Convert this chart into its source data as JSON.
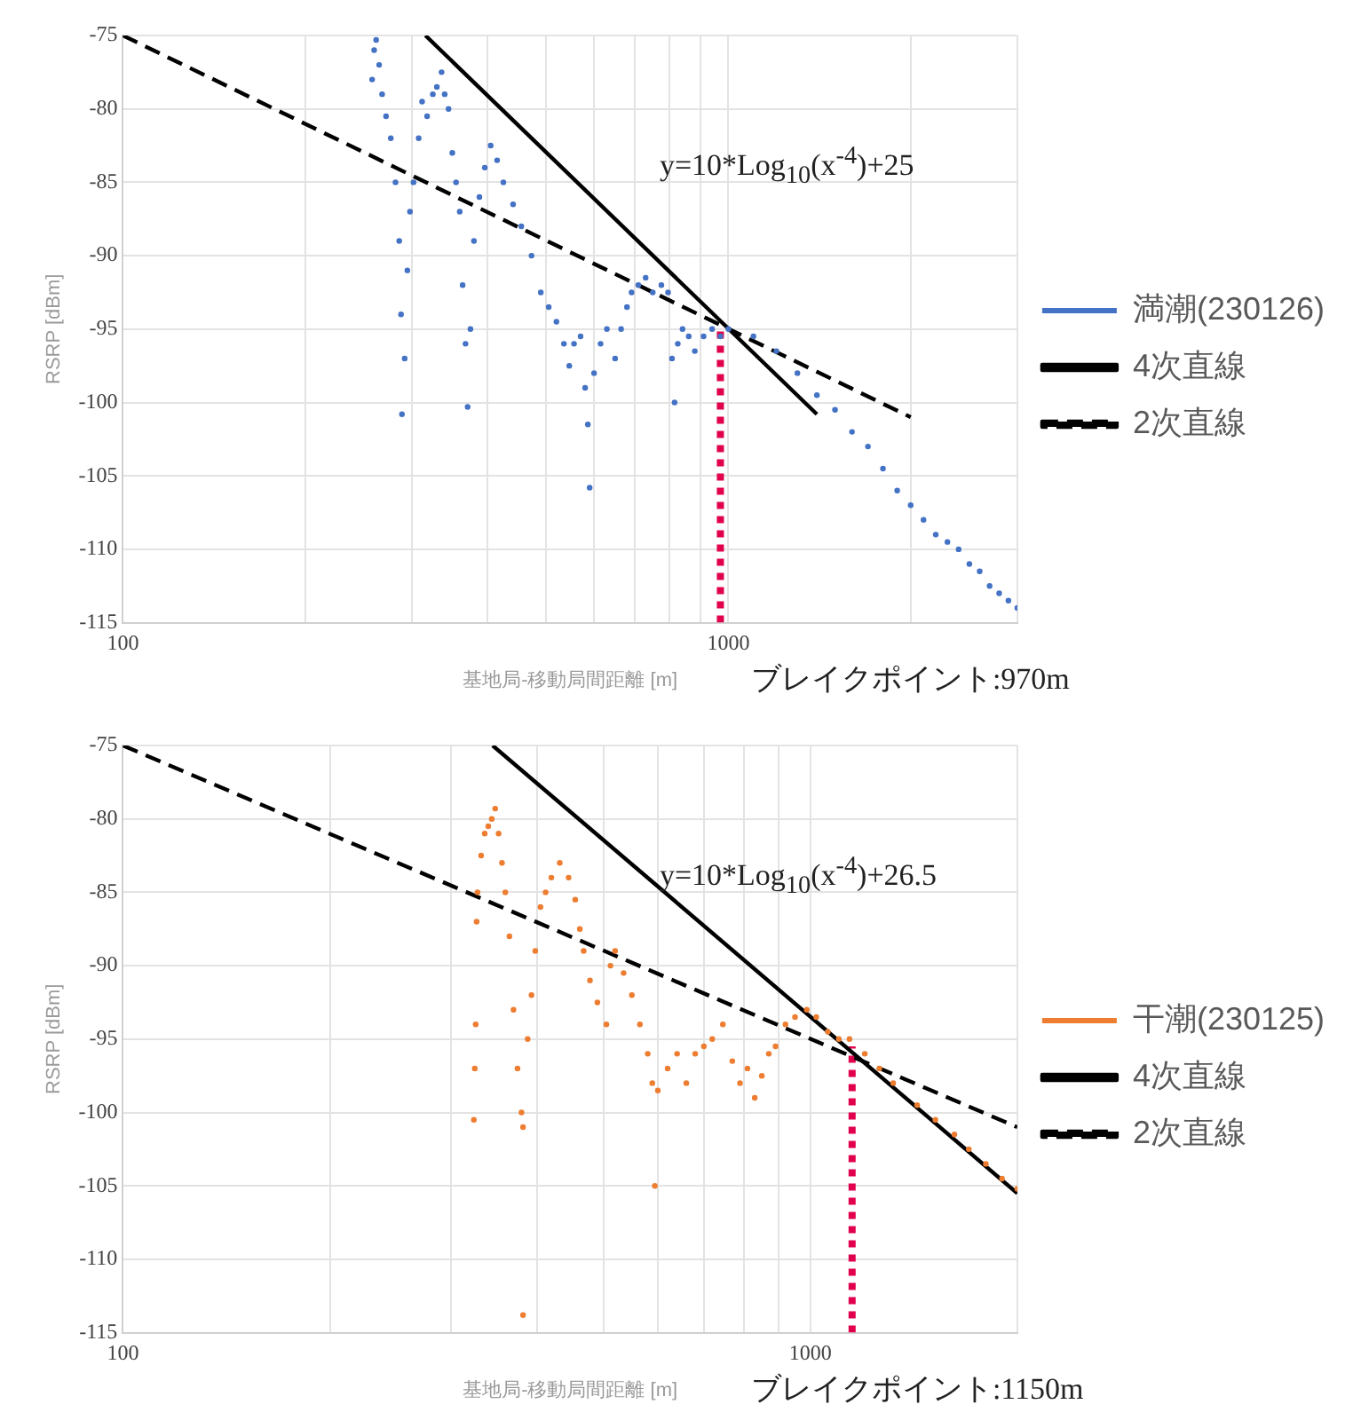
{
  "chart_data": [
    {
      "type": "scatter",
      "xlabel": "基地局-移動局間距離 [m]",
      "ylabel": "RSRP [dBm]",
      "log": "x",
      "grid": true,
      "legend": "right",
      "xlim": [
        100,
        3000
      ],
      "xticks": [
        {
          "value": 100,
          "label": "100"
        },
        {
          "value": 200,
          "label": null
        },
        {
          "value": 300,
          "label": null
        },
        {
          "value": 400,
          "label": null
        },
        {
          "value": 500,
          "label": null
        },
        {
          "value": 600,
          "label": null
        },
        {
          "value": 700,
          "label": null
        },
        {
          "value": 800,
          "label": null
        },
        {
          "value": 900,
          "label": null
        },
        {
          "value": 1000,
          "label": "1000"
        },
        {
          "value": 2000,
          "label": null
        },
        {
          "value": 3000,
          "label": null
        }
      ],
      "ylim": [
        -115,
        -75
      ],
      "yticks": [
        -115,
        -110,
        -105,
        -100,
        -95,
        -90,
        -85,
        -80,
        -75
      ],
      "annotations": [
        "y=10*Log$_{10}$(x$^{-4}$)+25",
        "ブレイクポイント:970m"
      ],
      "series": [
        {
          "name": "満潮(230126)",
          "type": "scatter",
          "marker": "circle",
          "color": "#4472c4",
          "x": [
            258,
            260,
            262,
            265,
            268,
            272,
            277,
            282,
            286,
            288,
            289,
            292,
            295,
            298,
            302,
            308,
            312,
            318,
            325,
            330,
            336,
            340,
            345,
            350,
            355,
            360,
            364,
            368,
            371,
            375,
            380,
            388,
            396,
            405,
            415,
            425,
            441,
            455,
            473,
            490,
            505,
            520,
            535,
            546,
            556,
            570,
            580,
            586,
            590,
            600,
            615,
            630,
            650,
            665,
            680,
            692,
            710,
            730,
            750,
            775,
            795,
            807,
            815,
            825,
            840,
            860,
            880,
            910,
            940,
            970,
            1000,
            1100,
            1200,
            1300,
            1400,
            1500,
            1600,
            1700,
            1800,
            1900,
            2000,
            2100,
            2200,
            2300,
            2400,
            2500,
            2600,
            2700,
            2800,
            2900,
            3000
          ],
          "values": [
            -78,
            -76,
            -75.3,
            -77,
            -79,
            -80.5,
            -82,
            -85,
            -89,
            -94,
            -100.8,
            -97,
            -91,
            -87,
            -85,
            -82,
            -79.5,
            -80.5,
            -79,
            -78.5,
            -77.5,
            -79,
            -80,
            -83,
            -85,
            -87,
            -92,
            -96,
            -100.3,
            -95,
            -89,
            -86,
            -84,
            -82.5,
            -83.5,
            -85,
            -86.5,
            -88,
            -90,
            -92.5,
            -93.5,
            -94.5,
            -96,
            -97.5,
            -96,
            -95.5,
            -99,
            -101.5,
            -105.8,
            -98,
            -96,
            -95,
            -97,
            -95,
            -93.5,
            -92.5,
            -92,
            -91.5,
            -92.5,
            -92,
            -92.5,
            -97,
            -100,
            -96,
            -95,
            -95.5,
            -96.5,
            -95.5,
            -95,
            -95.5,
            -95,
            -95.5,
            -96.5,
            -98,
            -99.5,
            -100.5,
            -102,
            -103,
            -104.5,
            -106,
            -107,
            -108,
            -109,
            -109.5,
            -110,
            -111,
            -111.5,
            -112.5,
            -113,
            -113.5,
            -114
          ]
        },
        {
          "name": "4次直線",
          "type": "line",
          "color": "#000000",
          "line_style": "solid",
          "x": [
            316,
            1400
          ],
          "values": [
            -75,
            -100.8
          ]
        },
        {
          "name": "2次直線",
          "type": "line",
          "color": "#000000",
          "line_style": "dashed",
          "x": [
            100,
            2000
          ],
          "values": [
            -75,
            -101
          ]
        },
        {
          "type": "line",
          "color": "#e0004d",
          "line_style": "dotted",
          "x": [
            970,
            970
          ],
          "values": [
            -115,
            -95
          ]
        }
      ]
    },
    {
      "type": "scatter",
      "xlabel": "基地局-移動局間距離 [m]",
      "ylabel": "RSRP [dBm]",
      "log": "x",
      "grid": true,
      "legend": "right",
      "xlim": [
        100,
        2000
      ],
      "xticks": [
        {
          "value": 100,
          "label": "100"
        },
        {
          "value": 200,
          "label": null
        },
        {
          "value": 300,
          "label": null
        },
        {
          "value": 400,
          "label": null
        },
        {
          "value": 500,
          "label": null
        },
        {
          "value": 600,
          "label": null
        },
        {
          "value": 700,
          "label": null
        },
        {
          "value": 800,
          "label": null
        },
        {
          "value": 900,
          "label": null
        },
        {
          "value": 1000,
          "label": "1000"
        },
        {
          "value": 2000,
          "label": null
        }
      ],
      "ylim": [
        -115,
        -75
      ],
      "yticks": [
        -115,
        -110,
        -105,
        -100,
        -95,
        -90,
        -85,
        -80,
        -75
      ],
      "annotations": [
        "y=10*Log$_{10}$(x$^{-4}$)+26.5",
        "ブレイクポイント:1150m"
      ],
      "series": [
        {
          "name": "干潮(230125)",
          "type": "scatter",
          "marker": "circle",
          "color": "#ed7d31",
          "x": [
            324,
            325,
            326,
            327,
            328,
            332,
            336,
            340,
            344,
            348,
            352,
            356,
            360,
            365,
            370,
            375,
            380,
            382,
            382,
            388,
            393,
            398,
            405,
            412,
            420,
            432,
            445,
            455,
            462,
            468,
            478,
            490,
            505,
            512,
            520,
            535,
            550,
            565,
            580,
            589,
            594,
            600,
            620,
            640,
            660,
            680,
            700,
            720,
            746,
            770,
            790,
            810,
            830,
            850,
            870,
            890,
            920,
            950,
            988,
            1020,
            1060,
            1100,
            1140,
            1200,
            1260,
            1320,
            1430,
            1520,
            1620,
            1700,
            1800,
            1900,
            2000
          ],
          "values": [
            -100.5,
            -97,
            -94,
            -87,
            -85,
            -82.5,
            -81,
            -80.5,
            -80,
            -79.3,
            -81,
            -83,
            -85,
            -88,
            -93,
            -97,
            -100,
            -101,
            -113.8,
            -95,
            -92,
            -89,
            -86,
            -85,
            -84,
            -83,
            -84,
            -85.5,
            -87.5,
            -89,
            -91,
            -92.5,
            -94,
            -90,
            -89,
            -90.5,
            -92,
            -94,
            -96,
            -98,
            -105,
            -98.5,
            -97,
            -96,
            -98,
            -96,
            -95.5,
            -95,
            -94,
            -96.5,
            -98,
            -97,
            -99,
            -97.5,
            -96,
            -95.5,
            -94,
            -93.5,
            -93,
            -93.5,
            -94.5,
            -95,
            -95,
            -96,
            -97,
            -98,
            -99.5,
            -100.5,
            -101.5,
            -102.5,
            -103.5,
            -104.5,
            -105.2
          ]
        },
        {
          "name": "4次直線",
          "type": "line",
          "color": "#000000",
          "line_style": "solid",
          "x": [
            345,
            2000
          ],
          "values": [
            -75,
            -105.5
          ]
        },
        {
          "name": "2次直線",
          "type": "line",
          "color": "#000000",
          "line_style": "dashed",
          "x": [
            100,
            2000
          ],
          "values": [
            -75,
            -101
          ]
        },
        {
          "type": "line",
          "color": "#e0004d",
          "line_style": "dotted",
          "x": [
            1150,
            1150
          ],
          "values": [
            -115,
            -95.5
          ]
        }
      ]
    }
  ]
}
